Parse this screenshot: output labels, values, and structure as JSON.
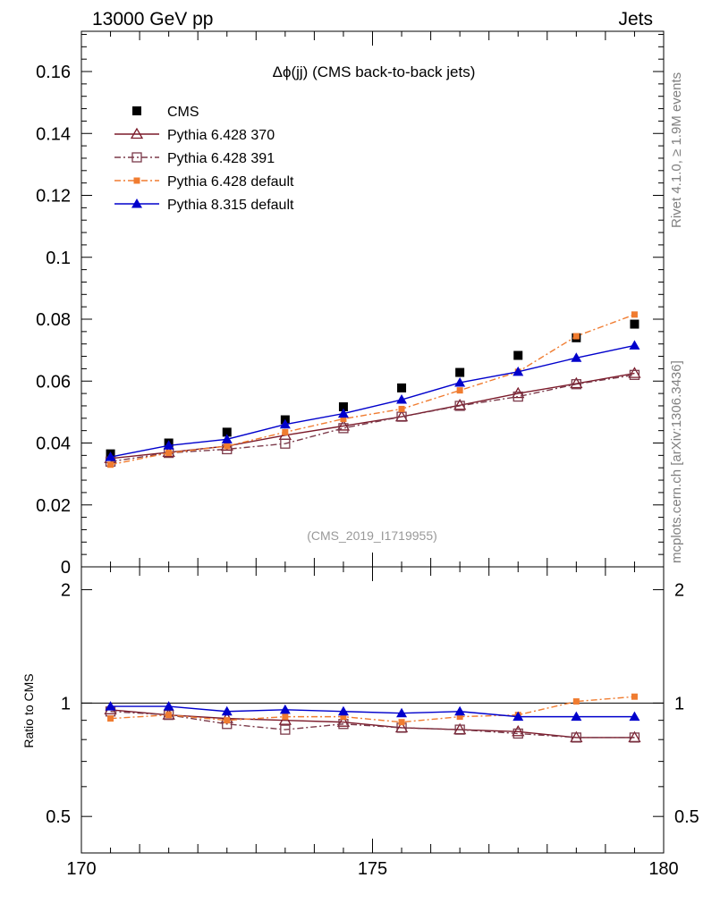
{
  "header": {
    "left": "13000 GeV pp",
    "right": "Jets"
  },
  "side_labels": {
    "top": "Rivet 4.1.0, ≥ 1.9M events",
    "bottom": "mcplots.cern.ch [arXiv:1306.3436]"
  },
  "chart_data": [
    {
      "type": "line",
      "title": "Δϕ(jj) (CMS back-to-back jets)",
      "watermark": "(CMS_2019_I1719955)",
      "xlim": [
        170,
        180
      ],
      "ylim": [
        0,
        0.173
      ],
      "ylabel": "",
      "y_ticks": [
        0,
        0.02,
        0.04,
        0.06,
        0.08,
        0.1,
        0.12,
        0.14,
        0.16
      ],
      "y_tick_labels": [
        "0",
        "0.02",
        "0.04",
        "0.06",
        "0.08",
        "0.1",
        "0.12",
        "0.14",
        "0.16"
      ],
      "x": [
        170.5,
        171.5,
        172.5,
        173.5,
        174.5,
        175.5,
        176.5,
        177.5,
        178.5,
        179.5
      ],
      "series": [
        {
          "name": "CMS",
          "color": "#000000",
          "marker": "square",
          "line": "none",
          "values": [
            0.0365,
            0.04,
            0.0435,
            0.0475,
            0.0517,
            0.0578,
            0.0628,
            0.0683,
            0.074,
            0.0784
          ]
        },
        {
          "name": "Pythia 6.428 370",
          "color": "#7b1a2a",
          "marker": "triangle-open",
          "line": "solid",
          "values": [
            0.035,
            0.037,
            0.039,
            0.0425,
            0.0455,
            0.0485,
            0.0522,
            0.056,
            0.0592,
            0.0625
          ]
        },
        {
          "name": "Pythia 6.428 391",
          "color": "#7b3a4a",
          "marker": "square-open",
          "line": "dashdot",
          "values": [
            0.034,
            0.0368,
            0.038,
            0.0398,
            0.0448,
            0.0485,
            0.052,
            0.055,
            0.059,
            0.062
          ]
        },
        {
          "name": "Pythia 6.428 default",
          "color": "#f07c30",
          "marker": "square-small",
          "line": "dashdot",
          "values": [
            0.033,
            0.0368,
            0.039,
            0.0435,
            0.0478,
            0.051,
            0.057,
            0.063,
            0.0745,
            0.0815
          ]
        },
        {
          "name": "Pythia 8.315 default",
          "color": "#0000cc",
          "marker": "triangle",
          "line": "solid",
          "values": [
            0.0355,
            0.0392,
            0.0412,
            0.046,
            0.0495,
            0.054,
            0.0595,
            0.063,
            0.0675,
            0.0715
          ]
        }
      ]
    },
    {
      "type": "line",
      "ylabel": "Ratio to CMS",
      "yscale": "log",
      "xlim": [
        170,
        180
      ],
      "ylim": [
        0.4,
        2.3
      ],
      "y_ticks": [
        0.5,
        1,
        2
      ],
      "y_tick_labels": [
        "0.5",
        "1",
        "2"
      ],
      "x_ticks": [
        170,
        175,
        180
      ],
      "x_tick_labels": [
        "170",
        "175",
        "180"
      ],
      "x": [
        170.5,
        171.5,
        172.5,
        173.5,
        174.5,
        175.5,
        176.5,
        177.5,
        178.5,
        179.5
      ],
      "series": [
        {
          "name": "Pythia 6.428 370",
          "color": "#7b1a2a",
          "marker": "triangle-open",
          "line": "solid",
          "values": [
            0.96,
            0.93,
            0.91,
            0.9,
            0.89,
            0.86,
            0.85,
            0.84,
            0.81,
            0.81
          ]
        },
        {
          "name": "Pythia 6.428 391",
          "color": "#7b3a4a",
          "marker": "square-open",
          "line": "dashdot",
          "values": [
            0.95,
            0.93,
            0.88,
            0.85,
            0.88,
            0.86,
            0.85,
            0.83,
            0.81,
            0.81
          ]
        },
        {
          "name": "Pythia 6.428 default",
          "color": "#f07c30",
          "marker": "square-small",
          "line": "dashdot",
          "values": [
            0.91,
            0.93,
            0.9,
            0.92,
            0.92,
            0.89,
            0.92,
            0.93,
            1.01,
            1.04
          ]
        },
        {
          "name": "Pythia 8.315 default",
          "color": "#0000cc",
          "marker": "triangle",
          "line": "solid",
          "values": [
            0.98,
            0.98,
            0.95,
            0.96,
            0.95,
            0.94,
            0.95,
            0.92,
            0.92,
            0.92
          ]
        }
      ]
    }
  ]
}
